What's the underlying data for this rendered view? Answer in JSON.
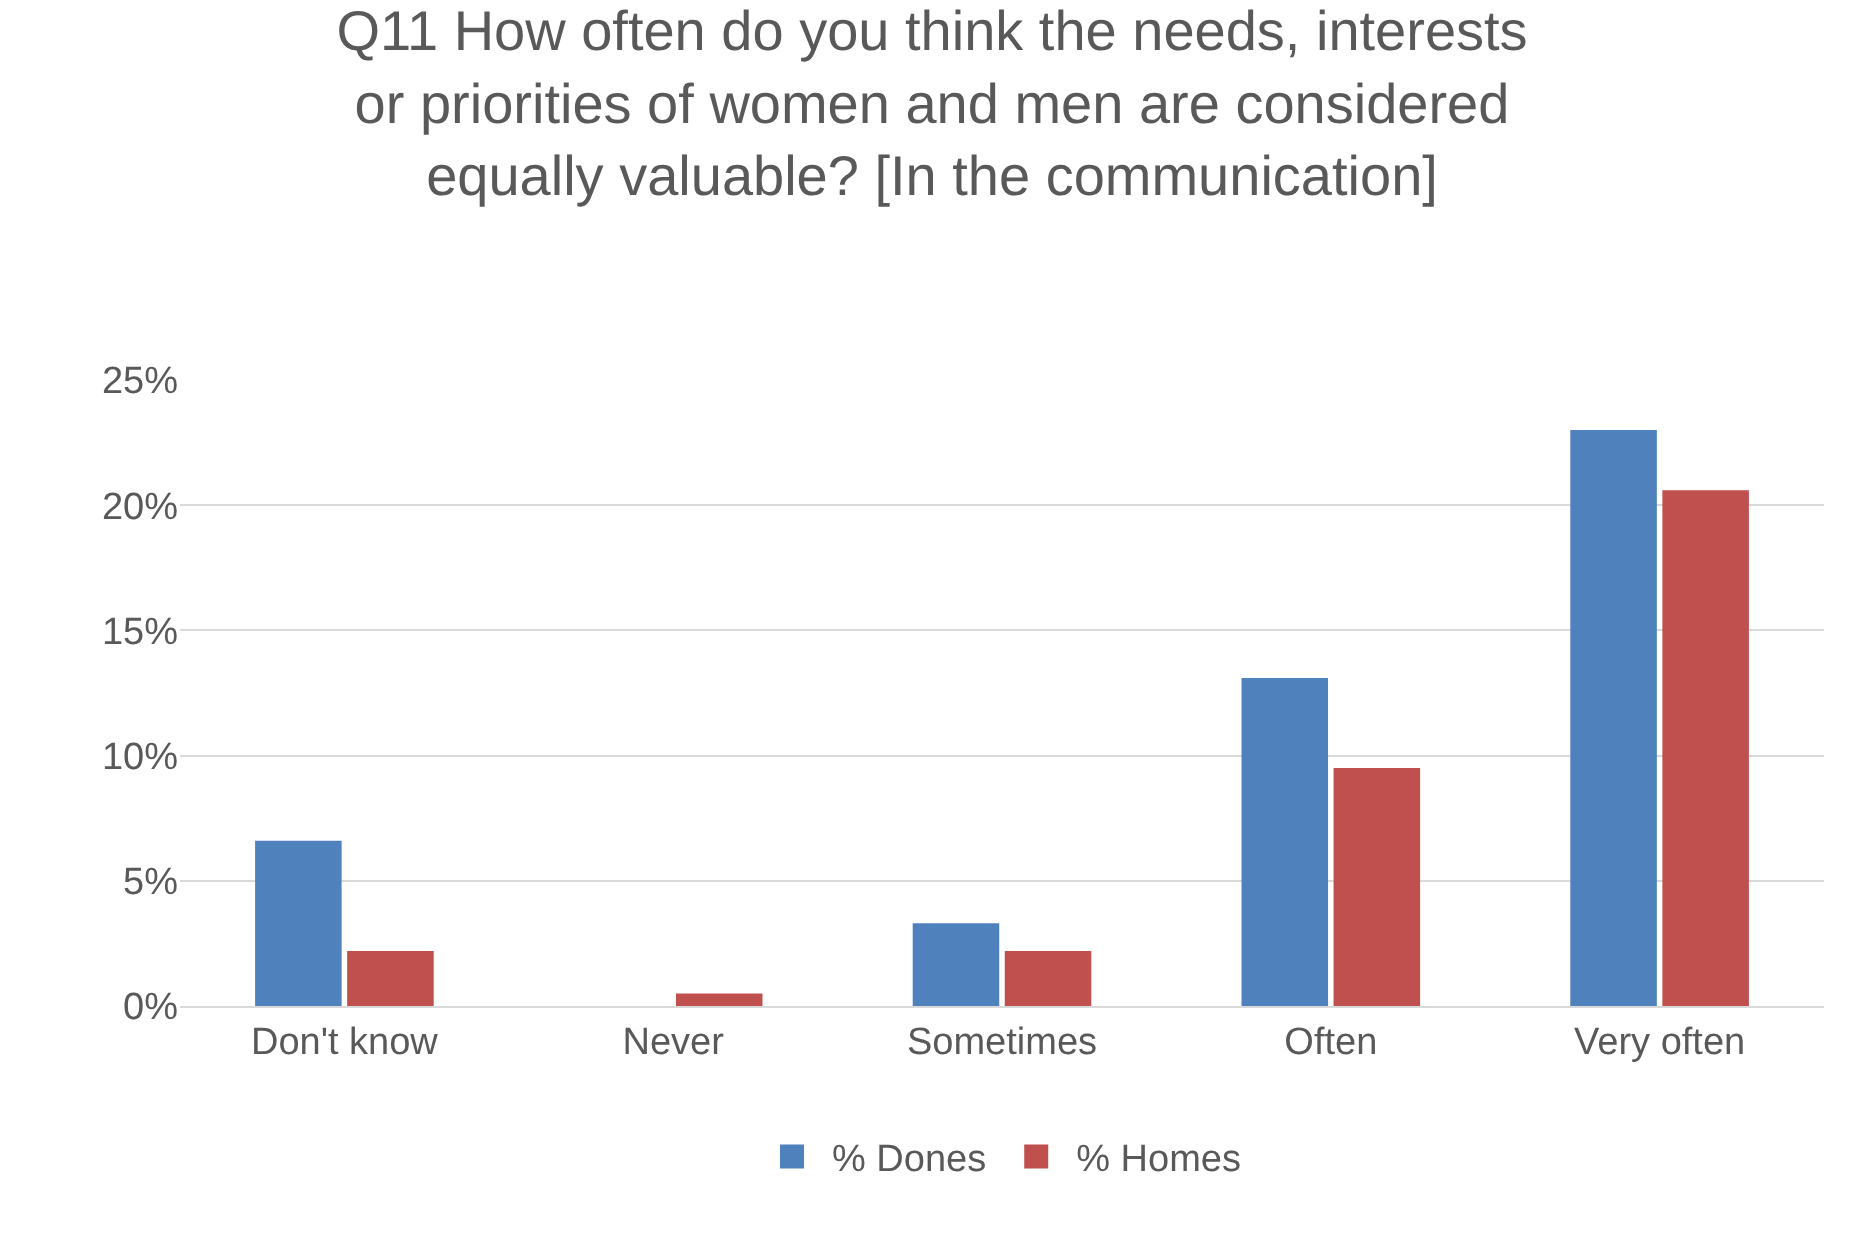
{
  "chart_data": {
    "type": "bar",
    "title": "Q11 How often do you think the needs, interests\nor priorities of women and men are considered\nequally valuable? [In the communication]",
    "categories": [
      "Don't know",
      "Never",
      "Sometimes",
      "Often",
      "Very often"
    ],
    "series": [
      {
        "name": "% Dones",
        "color": "#4f81bd",
        "values": [
          6.6,
          0,
          3.3,
          13.1,
          23.0
        ]
      },
      {
        "name": "% Homes",
        "color": "#c0504d",
        "values": [
          2.2,
          0.5,
          2.2,
          9.5,
          20.6
        ]
      }
    ],
    "ylim": [
      0,
      25
    ],
    "yticks": [
      {
        "value": 0,
        "label": "0%"
      },
      {
        "value": 5,
        "label": "5%"
      },
      {
        "value": 10,
        "label": "10%"
      },
      {
        "value": 15,
        "label": "15%"
      },
      {
        "value": 20,
        "label": "20%"
      },
      {
        "value": 25,
        "label": "25%"
      }
    ],
    "grid": "y",
    "legend": "bottom"
  }
}
